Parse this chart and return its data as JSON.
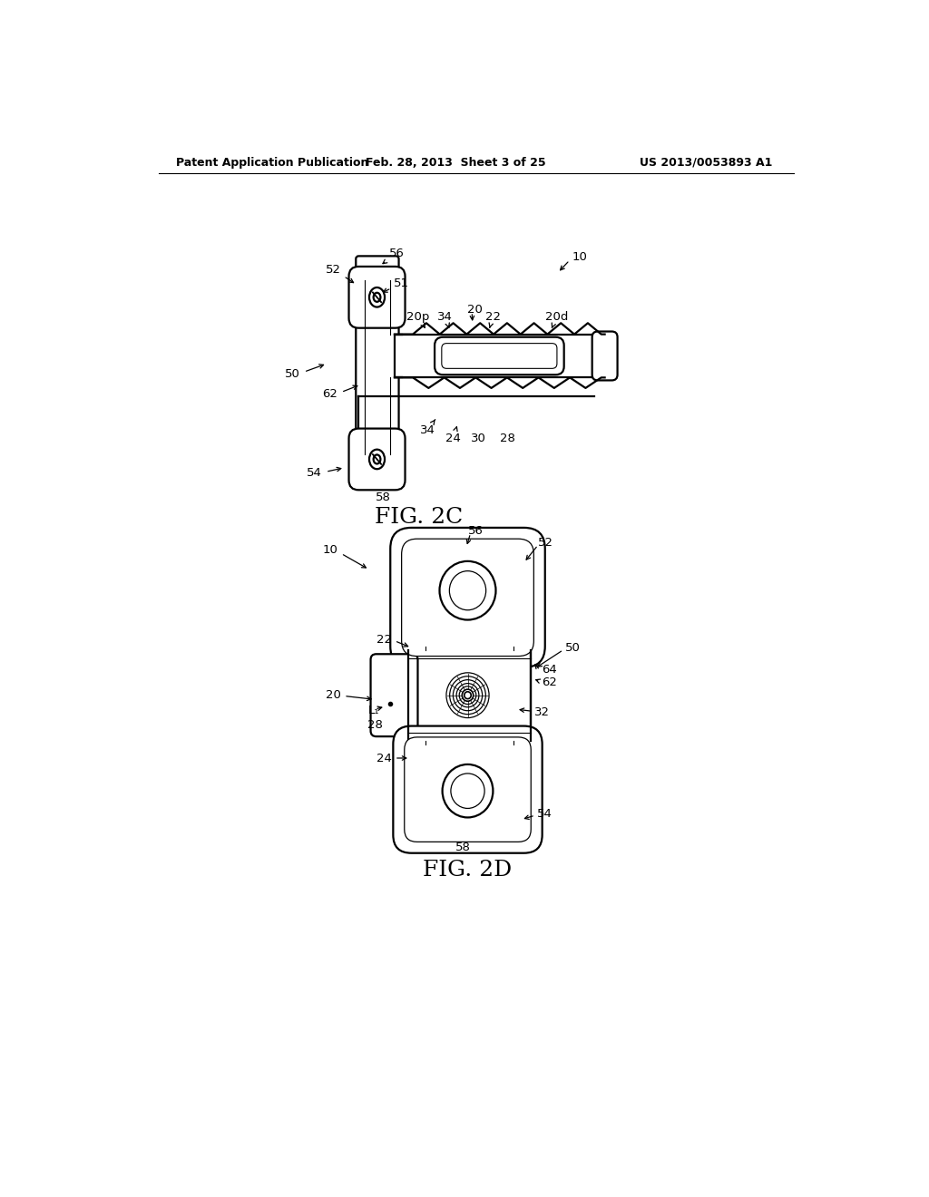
{
  "bg_color": "#ffffff",
  "header_left": "Patent Application Publication",
  "header_mid": "Feb. 28, 2013  Sheet 3 of 25",
  "header_right": "US 2013/0053893 A1",
  "fig2c_caption": "FIG. 2C",
  "fig2d_caption": "FIG. 2D",
  "line_color": "#000000",
  "lw": 1.5,
  "label_fontsize": 9.5,
  "caption_fontsize": 18
}
